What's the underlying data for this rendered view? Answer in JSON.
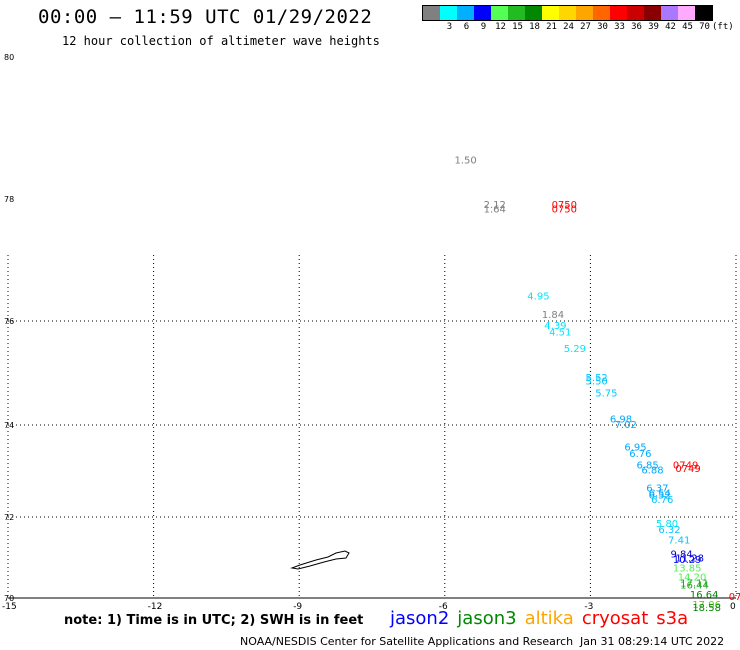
{
  "header": {
    "title": "00:00 — 11:59 UTC 01/29/2022",
    "subtitle": "12 hour collection of altimeter wave heights"
  },
  "legend": {
    "unit": "(ft)",
    "colors": [
      "#808080",
      "#00ffff",
      "#00b0ff",
      "#0000ff",
      "#55ff55",
      "#22bb22",
      "#008800",
      "#ffff00",
      "#ffd700",
      "#ffa500",
      "#ff6600",
      "#ff0000",
      "#cc0000",
      "#880000",
      "#aa77ff",
      "#ffaaff",
      "#000000"
    ],
    "labels": [
      "",
      "3",
      "6",
      "9",
      "12",
      "15",
      "18",
      "21",
      "24",
      "27",
      "30",
      "33",
      "36",
      "39",
      "42",
      "45",
      "70"
    ]
  },
  "axes": {
    "lat_labels": [
      "80",
      "78",
      "76",
      "74",
      "72",
      "70"
    ],
    "lon_labels": [
      "-15",
      "-12",
      "-9",
      "-6",
      "-3",
      "0"
    ]
  },
  "map": {
    "type": "scatter",
    "x_label": "longitude",
    "y_label": "latitude",
    "xlim": [
      -15,
      0
    ],
    "ylim": [
      70,
      80
    ],
    "grid": true,
    "points": [
      {
        "lon": -5.8,
        "lat": 78.5,
        "text": "1.50",
        "color": "#808080"
      },
      {
        "lon": -5.2,
        "lat": 77.85,
        "text": "2.12",
        "color": "#808080"
      },
      {
        "lon": -5.2,
        "lat": 77.78,
        "text": "1.64",
        "color": "#808080"
      },
      {
        "lon": -3.8,
        "lat": 77.85,
        "text": "0750",
        "color": "#ff0000"
      },
      {
        "lon": -3.8,
        "lat": 77.78,
        "text": "0750",
        "color": "#ff0000"
      },
      {
        "lon": -4.3,
        "lat": 76.35,
        "text": "4.95",
        "color": "#00e5ff"
      },
      {
        "lon": -4.0,
        "lat": 76.05,
        "text": "1.84",
        "color": "#808080"
      },
      {
        "lon": -3.95,
        "lat": 75.85,
        "text": "4.39",
        "color": "#00e5ff"
      },
      {
        "lon": -3.85,
        "lat": 75.72,
        "text": "4.51",
        "color": "#00e5ff"
      },
      {
        "lon": -3.55,
        "lat": 75.4,
        "text": "5.29",
        "color": "#00e5ff"
      },
      {
        "lon": -3.1,
        "lat": 74.85,
        "text": "5.52",
        "color": "#00c8ff"
      },
      {
        "lon": -3.1,
        "lat": 74.78,
        "text": "5.50",
        "color": "#00c8ff"
      },
      {
        "lon": -2.9,
        "lat": 74.55,
        "text": "5.75",
        "color": "#00c8ff"
      },
      {
        "lon": -2.6,
        "lat": 74.05,
        "text": "6.98",
        "color": "#00a8ff"
      },
      {
        "lon": -2.5,
        "lat": 73.93,
        "text": "7.02",
        "color": "#00a8ff"
      },
      {
        "lon": -2.3,
        "lat": 73.45,
        "text": "6.95",
        "color": "#00a8ff"
      },
      {
        "lon": -2.2,
        "lat": 73.3,
        "text": "6.76",
        "color": "#00a8ff"
      },
      {
        "lon": -2.05,
        "lat": 73.05,
        "text": "6.85",
        "color": "#00a8ff"
      },
      {
        "lon": -1.95,
        "lat": 72.95,
        "text": "6.88",
        "color": "#00a8ff"
      },
      {
        "lon": -1.3,
        "lat": 73.05,
        "text": "0749",
        "color": "#ff0000"
      },
      {
        "lon": -1.25,
        "lat": 72.98,
        "text": "0749",
        "color": "#ff0000"
      },
      {
        "lon": -1.85,
        "lat": 72.55,
        "text": "6.37",
        "color": "#00a8ff"
      },
      {
        "lon": -1.8,
        "lat": 72.45,
        "text": "6.54",
        "color": "#00a8ff"
      },
      {
        "lon": -1.8,
        "lat": 72.4,
        "text": "6.52",
        "color": "#00a8ff"
      },
      {
        "lon": -1.75,
        "lat": 72.3,
        "text": "6.76",
        "color": "#00c8ff"
      },
      {
        "lon": -1.65,
        "lat": 71.75,
        "text": "5.80",
        "color": "#00e5ff"
      },
      {
        "lon": -1.6,
        "lat": 71.6,
        "text": "6.32",
        "color": "#00c8ff"
      },
      {
        "lon": -1.4,
        "lat": 71.35,
        "text": "7.41",
        "color": "#00c8ff"
      },
      {
        "lon": -1.35,
        "lat": 71.0,
        "text": "9.84",
        "color": "#0000cc"
      },
      {
        "lon": -1.25,
        "lat": 70.9,
        "text": "11.28",
        "color": "#0000cc"
      },
      {
        "lon": -1.3,
        "lat": 70.87,
        "text": "10.29",
        "color": "#0000ff"
      },
      {
        "lon": -1.3,
        "lat": 70.65,
        "text": "13.85",
        "color": "#55ee55"
      },
      {
        "lon": -1.2,
        "lat": 70.43,
        "text": "14.20",
        "color": "#55ee55"
      },
      {
        "lon": -1.15,
        "lat": 70.28,
        "text": "17.11",
        "color": "#22aa22"
      },
      {
        "lon": -1.15,
        "lat": 70.23,
        "text": "16.44",
        "color": "#22aa22"
      },
      {
        "lon": -0.95,
        "lat": 70.0,
        "text": "16.64",
        "color": "#008800"
      },
      {
        "lon": -0.9,
        "lat": 69.75,
        "text": "17.06",
        "color": "#66cc00"
      },
      {
        "lon": -0.9,
        "lat": 69.68,
        "text": "18.58",
        "color": "#008800"
      },
      {
        "lon": -0.15,
        "lat": 69.95,
        "text": "07",
        "color": "#ff0000"
      }
    ]
  },
  "footer": {
    "note": "note: 1) Time is in UTC; 2) SWH is in feet",
    "satellites": [
      {
        "name": "jason2",
        "color": "#0000ff"
      },
      {
        "name": "jason3",
        "color": "#008800"
      },
      {
        "name": "altika",
        "color": "#ffa500"
      },
      {
        "name": "cryosat",
        "color": "#ff0000"
      },
      {
        "name": "s3a",
        "color": "#ff0000"
      }
    ],
    "credit": "NOAA/NESDIS Center for Satellite Applications and Research",
    "timestamp": "Jan 31 08:29:14 UTC 2022"
  }
}
